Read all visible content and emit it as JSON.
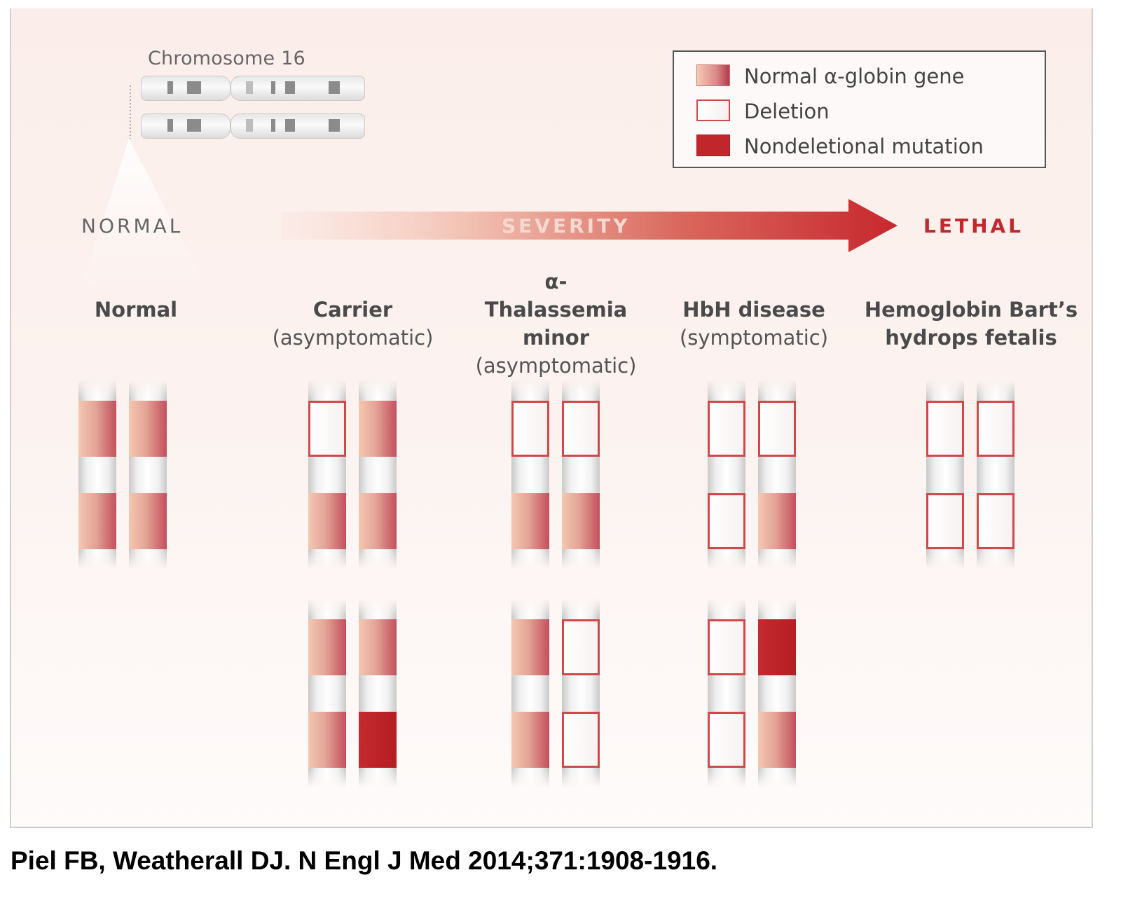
{
  "chromosome": {
    "title": "Chromosome 16"
  },
  "legend": [
    {
      "type": "normal",
      "label": "Normal α-globin gene"
    },
    {
      "type": "deletion",
      "label": "Deletion"
    },
    {
      "type": "mutation",
      "label": "Nondeletional mutation"
    }
  ],
  "severity": {
    "start_label": "NORMAL",
    "arrow_label": "SEVERITY",
    "end_label": "LETHAL"
  },
  "columns": [
    {
      "title": "Normal",
      "subtitle": "",
      "groups": [
        [
          [
            "normal",
            "normal"
          ],
          [
            "normal",
            "normal"
          ]
        ]
      ]
    },
    {
      "title": "Carrier",
      "subtitle": "(asymptomatic)",
      "groups": [
        [
          [
            "deletion",
            "normal"
          ],
          [
            "normal",
            "normal"
          ]
        ],
        [
          [
            "normal",
            "normal"
          ],
          [
            "normal",
            "mutation"
          ]
        ]
      ]
    },
    {
      "title": "α-Thalassemia minor",
      "subtitle": "(asymptomatic)",
      "groups": [
        [
          [
            "deletion",
            "deletion"
          ],
          [
            "normal",
            "normal"
          ]
        ],
        [
          [
            "normal",
            "deletion"
          ],
          [
            "normal",
            "deletion"
          ]
        ]
      ]
    },
    {
      "title": "HbH disease",
      "subtitle": "(symptomatic)",
      "groups": [
        [
          [
            "deletion",
            "deletion"
          ],
          [
            "deletion",
            "normal"
          ]
        ],
        [
          [
            "deletion",
            "mutation"
          ],
          [
            "deletion",
            "normal"
          ]
        ]
      ]
    },
    {
      "title": "Hemoglobin Bart’s hydrops fetalis",
      "subtitle": "",
      "groups": [
        [
          [
            "deletion",
            "deletion"
          ],
          [
            "deletion",
            "deletion"
          ]
        ]
      ]
    }
  ],
  "colors": {
    "normal_gene": "#d98a88",
    "deletion_border": "#d04848",
    "mutation": "#c1262d",
    "lethal": "#c0292e"
  },
  "citation": "Piel FB, Weatherall DJ. N Engl J Med 2014;371:1908-1916."
}
